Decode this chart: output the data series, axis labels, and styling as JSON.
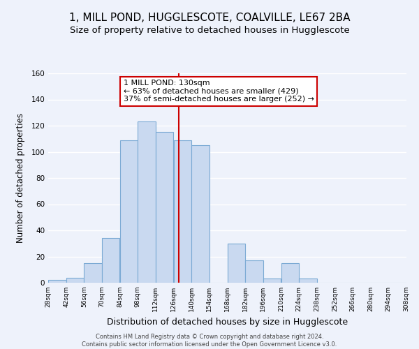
{
  "title": "1, MILL POND, HUGGLESCOTE, COALVILLE, LE67 2BA",
  "subtitle": "Size of property relative to detached houses in Hugglescote",
  "xlabel": "Distribution of detached houses by size in Hugglescote",
  "ylabel": "Number of detached properties",
  "bin_edges": [
    28,
    42,
    56,
    70,
    84,
    98,
    112,
    126,
    140,
    154,
    168,
    182,
    196,
    210,
    224,
    238,
    252,
    266,
    280,
    294,
    308
  ],
  "bar_heights": [
    2,
    4,
    15,
    34,
    109,
    123,
    115,
    109,
    105,
    0,
    30,
    17,
    3,
    15,
    3,
    0,
    0,
    0,
    0,
    0
  ],
  "bar_color": "#c9d9f0",
  "bar_edgecolor": "#7baad4",
  "vline_x": 130,
  "vline_color": "#cc0000",
  "annotation_text_line1": "1 MILL POND: 130sqm",
  "annotation_text_line2": "← 63% of detached houses are smaller (429)",
  "annotation_text_line3": "37% of semi-detached houses are larger (252) →",
  "annotation_box_edgecolor": "#cc0000",
  "annotation_box_facecolor": "#ffffff",
  "ylim": [
    0,
    160
  ],
  "yticks": [
    0,
    20,
    40,
    60,
    80,
    100,
    120,
    140,
    160
  ],
  "title_fontsize": 11,
  "subtitle_fontsize": 9.5,
  "xlabel_fontsize": 9,
  "ylabel_fontsize": 8.5,
  "footer_line1": "Contains HM Land Registry data © Crown copyright and database right 2024.",
  "footer_line2": "Contains public sector information licensed under the Open Government Licence v3.0.",
  "background_color": "#eef2fb",
  "grid_color": "#ffffff",
  "tick_labels": [
    "28sqm",
    "42sqm",
    "56sqm",
    "70sqm",
    "84sqm",
    "98sqm",
    "112sqm",
    "126sqm",
    "140sqm",
    "154sqm",
    "168sqm",
    "182sqm",
    "196sqm",
    "210sqm",
    "224sqm",
    "238sqm",
    "252sqm",
    "266sqm",
    "280sqm",
    "294sqm",
    "308sqm"
  ]
}
